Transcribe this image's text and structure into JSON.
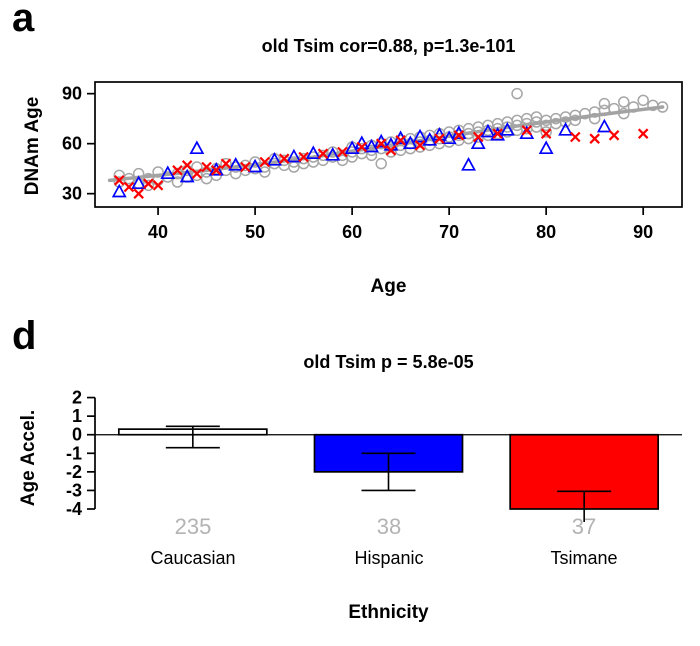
{
  "chart_data": [
    {
      "type": "scatter",
      "panel_label": "a",
      "title": "old Tsim cor=0.88, p=1.3e-101",
      "xlabel": "Age",
      "ylabel": "DNAm Age",
      "xlim": [
        33.5,
        94
      ],
      "ylim": [
        22,
        97
      ],
      "xticks": [
        40,
        50,
        60,
        70,
        80,
        90
      ],
      "yticks": [
        30,
        60,
        90
      ],
      "grid": false,
      "legend": "none",
      "trend_line": {
        "color": "#a3a3a3",
        "points": [
          [
            35,
            38
          ],
          [
            45,
            44
          ],
          [
            55,
            51
          ],
          [
            65,
            60
          ],
          [
            75,
            69
          ],
          [
            85,
            77
          ],
          [
            92,
            82
          ]
        ]
      },
      "series": [
        {
          "name": "Caucasian",
          "marker": "circle",
          "color": "#a6a6a6",
          "points": [
            [
              36,
              37
            ],
            [
              36,
              41
            ],
            [
              37,
              39
            ],
            [
              38,
              36
            ],
            [
              38,
              42
            ],
            [
              39,
              39
            ],
            [
              39,
              35
            ],
            [
              40,
              38
            ],
            [
              40,
              43
            ],
            [
              41,
              40
            ],
            [
              42,
              42
            ],
            [
              42,
              37
            ],
            [
              43,
              44
            ],
            [
              43,
              40
            ],
            [
              44,
              41
            ],
            [
              44,
              46
            ],
            [
              45,
              43
            ],
            [
              45,
              39
            ],
            [
              46,
              45
            ],
            [
              46,
              41
            ],
            [
              47,
              44
            ],
            [
              47,
              48
            ],
            [
              48,
              46
            ],
            [
              48,
              42
            ],
            [
              49,
              47
            ],
            [
              49,
              44
            ],
            [
              50,
              45
            ],
            [
              50,
              49
            ],
            [
              51,
              46
            ],
            [
              51,
              43
            ],
            [
              52,
              48
            ],
            [
              52,
              51
            ],
            [
              53,
              47
            ],
            [
              53,
              50
            ],
            [
              54,
              49
            ],
            [
              54,
              46
            ],
            [
              55,
              51
            ],
            [
              55,
              48
            ],
            [
              56,
              52
            ],
            [
              56,
              49
            ],
            [
              57,
              53
            ],
            [
              57,
              50
            ],
            [
              58,
              52
            ],
            [
              58,
              55
            ],
            [
              59,
              53
            ],
            [
              59,
              50
            ],
            [
              60,
              55
            ],
            [
              60,
              52
            ],
            [
              60,
              58
            ],
            [
              61,
              54
            ],
            [
              61,
              57
            ],
            [
              62,
              56
            ],
            [
              62,
              53
            ],
            [
              62,
              59
            ],
            [
              63,
              57
            ],
            [
              63,
              48
            ],
            [
              63,
              60
            ],
            [
              64,
              58
            ],
            [
              64,
              55
            ],
            [
              64,
              61
            ],
            [
              65,
              59
            ],
            [
              65,
              56
            ],
            [
              65,
              62
            ],
            [
              66,
              60
            ],
            [
              66,
              57
            ],
            [
              66,
              63
            ],
            [
              67,
              61
            ],
            [
              67,
              58
            ],
            [
              67,
              64
            ],
            [
              68,
              62
            ],
            [
              68,
              59
            ],
            [
              68,
              65
            ],
            [
              69,
              63
            ],
            [
              69,
              60
            ],
            [
              69,
              66
            ],
            [
              70,
              64
            ],
            [
              70,
              61
            ],
            [
              70,
              67
            ],
            [
              71,
              65
            ],
            [
              71,
              62
            ],
            [
              71,
              68
            ],
            [
              72,
              66
            ],
            [
              72,
              63
            ],
            [
              72,
              69
            ],
            [
              73,
              67
            ],
            [
              73,
              64
            ],
            [
              73,
              70
            ],
            [
              74,
              68
            ],
            [
              74,
              65
            ],
            [
              74,
              71
            ],
            [
              75,
              69
            ],
            [
              75,
              66
            ],
            [
              75,
              72
            ],
            [
              76,
              70
            ],
            [
              76,
              67
            ],
            [
              76,
              73
            ],
            [
              77,
              71
            ],
            [
              77,
              68
            ],
            [
              77,
              74
            ],
            [
              77,
              90
            ],
            [
              78,
              72
            ],
            [
              78,
              69
            ],
            [
              78,
              75
            ],
            [
              79,
              73
            ],
            [
              79,
              70
            ],
            [
              79,
              76
            ],
            [
              80,
              74
            ],
            [
              80,
              71
            ],
            [
              80,
              67
            ],
            [
              81,
              75
            ],
            [
              81,
              72
            ],
            [
              82,
              76
            ],
            [
              82,
              73
            ],
            [
              83,
              77
            ],
            [
              83,
              74
            ],
            [
              84,
              78
            ],
            [
              85,
              79
            ],
            [
              85,
              75
            ],
            [
              86,
              80
            ],
            [
              86,
              84
            ],
            [
              87,
              81
            ],
            [
              88,
              85
            ],
            [
              88,
              78
            ],
            [
              89,
              82
            ],
            [
              90,
              86
            ],
            [
              91,
              83
            ],
            [
              92,
              82
            ]
          ]
        },
        {
          "name": "Hispanic",
          "marker": "triangle",
          "color": "#0000ff",
          "points": [
            [
              36,
              31
            ],
            [
              38,
              36
            ],
            [
              41,
              42
            ],
            [
              43,
              40
            ],
            [
              44,
              57
            ],
            [
              46,
              44
            ],
            [
              48,
              47
            ],
            [
              50,
              46
            ],
            [
              52,
              50
            ],
            [
              54,
              52
            ],
            [
              56,
              54
            ],
            [
              58,
              53
            ],
            [
              60,
              57
            ],
            [
              61,
              60
            ],
            [
              62,
              58
            ],
            [
              63,
              61
            ],
            [
              64,
              59
            ],
            [
              65,
              63
            ],
            [
              66,
              60
            ],
            [
              67,
              64
            ],
            [
              68,
              62
            ],
            [
              69,
              65
            ],
            [
              70,
              63
            ],
            [
              71,
              66
            ],
            [
              72,
              47
            ],
            [
              73,
              60
            ],
            [
              74,
              67
            ],
            [
              75,
              65
            ],
            [
              76,
              68
            ],
            [
              78,
              66
            ],
            [
              80,
              57
            ],
            [
              82,
              68
            ],
            [
              86,
              70
            ]
          ]
        },
        {
          "name": "Tsimane",
          "marker": "x",
          "color": "#ff0000",
          "points": [
            [
              36,
              38
            ],
            [
              37,
              34
            ],
            [
              38,
              30
            ],
            [
              39,
              36
            ],
            [
              40,
              35
            ],
            [
              42,
              44
            ],
            [
              43,
              47
            ],
            [
              44,
              42
            ],
            [
              45,
              46
            ],
            [
              46,
              44
            ],
            [
              47,
              48
            ],
            [
              49,
              46
            ],
            [
              51,
              49
            ],
            [
              53,
              51
            ],
            [
              55,
              52
            ],
            [
              57,
              54
            ],
            [
              59,
              55
            ],
            [
              61,
              58
            ],
            [
              63,
              60
            ],
            [
              64,
              56
            ],
            [
              65,
              62
            ],
            [
              67,
              59
            ],
            [
              69,
              63
            ],
            [
              71,
              65
            ],
            [
              73,
              64
            ],
            [
              75,
              66
            ],
            [
              78,
              68
            ],
            [
              80,
              66
            ],
            [
              83,
              64
            ],
            [
              85,
              63
            ],
            [
              87,
              65
            ],
            [
              90,
              66
            ]
          ]
        }
      ]
    },
    {
      "type": "bar",
      "panel_label": "d",
      "title": "old Tsim p = 5.8e-05",
      "xlabel": "Ethnicity",
      "ylabel": "Age Accel.",
      "categories": [
        "Caucasian",
        "Hispanic",
        "Tsimane"
      ],
      "values": [
        0.3,
        -2.0,
        -4.0
      ],
      "error_bars": [
        {
          "low": -0.7,
          "high": 0.45
        },
        {
          "low": -3.0,
          "high": -1.0
        },
        {
          "low": -4.9,
          "high": -3.05
        }
      ],
      "counts": [
        235,
        38,
        37
      ],
      "bar_colors": [
        "#ffffff",
        "#0000ff",
        "#ff0000"
      ],
      "count_color": "#b3b3b3",
      "ylim": [
        -4.7,
        2.3
      ],
      "yticks": [
        2,
        1,
        0,
        -1,
        -2,
        -3,
        -4
      ]
    }
  ]
}
